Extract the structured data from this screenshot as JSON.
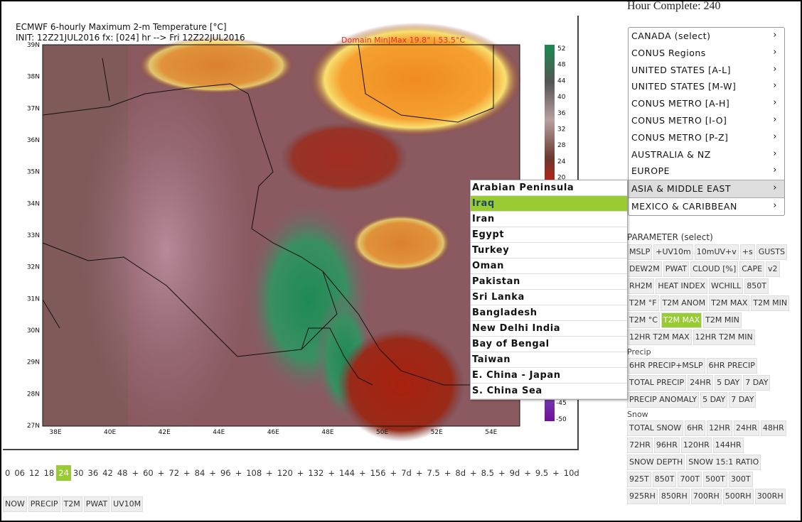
{
  "header": {
    "hour_complete": "Hour Complete: 240"
  },
  "map": {
    "title_lines": [
      "ECMWF 6-hourly Maximum 2-m Temperature [°C]",
      "INIT: 12Z21JUL2016 fx: [024] hr --> Fri 12Z22JUL2016"
    ],
    "domain_label": "Domain Min|Max 19.8° | 53.5°C",
    "lat_labels": [
      "39N",
      "38N",
      "37N",
      "36N",
      "35N",
      "34N",
      "33N",
      "32N",
      "31N",
      "30N",
      "29N",
      "28N",
      "27N"
    ],
    "lon_labels": [
      "38E",
      "40E",
      "42E",
      "44E",
      "46E",
      "48E",
      "50E",
      "52E",
      "54E"
    ],
    "colorbar_labels": [
      52,
      48,
      44,
      40,
      36,
      32,
      28,
      24,
      20
    ],
    "colorbar_labels_bottom": [
      -45,
      -50
    ]
  },
  "forecast_hours": {
    "items": [
      "0",
      "06",
      "12",
      "18",
      "24",
      "30",
      "36",
      "42",
      "48",
      "+",
      "60",
      "+",
      "72",
      "+",
      "84",
      "+",
      "96",
      "+",
      "108",
      "+",
      "120",
      "+",
      "132",
      "+",
      "144",
      "+",
      "156",
      "+",
      "7d",
      "+",
      "7.5",
      "+",
      "8d",
      "+",
      "8.5",
      "+",
      "9d",
      "+",
      "9.5",
      "+",
      "10d"
    ],
    "active": 4
  },
  "bottom_buttons": [
    "NOW",
    "PRECIP",
    "T2M",
    "PWAT",
    "UV10M"
  ],
  "region_menu": {
    "items": [
      "CANADA (select)",
      "CONUS Regions",
      "UNITED STATES [A-L]",
      "UNITED STATES [M-W]",
      "CONUS METRO [A-H]",
      "CONUS METRO [I-O]",
      "CONUS METRO [P-Z]",
      "AUSTRALIA & NZ",
      "EUROPE",
      "ASIA & MIDDLE EAST",
      "MEXICO & CARIBBEAN"
    ],
    "active": 9
  },
  "submenu": {
    "items": [
      "Arabian Peninsula",
      "Iraq",
      "Iran",
      "Egypt",
      "Turkey",
      "Oman",
      "Pakistan",
      "Sri Lanka",
      "Bangladesh",
      "New Delhi India",
      "Bay of Bengal",
      "Taiwan",
      "E. China - Japan",
      "S. China Sea"
    ],
    "active": 1
  },
  "parameters": {
    "title": "PARAMETER (select)",
    "sections": [
      {
        "rows": [
          [
            "MSLP",
            "+UV10m",
            "10mUV+v",
            "+s",
            "GUSTS"
          ],
          [
            "DEW2M",
            "PWAT",
            "CLOUD [%]",
            "CAPE",
            "v2"
          ],
          [
            "RH2M",
            "HEAT INDEX",
            "WCHILL",
            "850T"
          ],
          [
            "T2M °F",
            "T2M ANOM",
            "T2M MAX",
            "T2M MIN"
          ],
          [
            "T2M °C",
            "T2M MAX",
            "T2M MIN"
          ],
          [
            "12HR T2M MAX",
            "12HR T2M MIN"
          ]
        ]
      },
      {
        "label": "Precip",
        "rows": [
          [
            "6HR PRECIP+MSLP",
            "6HR PRECIP"
          ],
          [
            "TOTAL PRECIP",
            "24HR",
            "5 DAY",
            "7 DAY"
          ],
          [
            "PRECIP ANOMALY",
            "5 DAY",
            "7 DAY"
          ]
        ]
      },
      {
        "label": "Snow",
        "rows": [
          [
            "TOTAL SNOW",
            "6HR",
            "12HR",
            "24HR",
            "48HR"
          ],
          [
            "72HR",
            "96HR",
            "120HR",
            "144HR"
          ],
          [
            "SNOW DEPTH",
            "SNOW 15:1 RATIO"
          ],
          [
            "925T",
            "850T",
            "700T",
            "500T",
            "300T"
          ],
          [
            "925RH",
            "850RH",
            "700RH",
            "500RH",
            "300RH"
          ]
        ]
      }
    ],
    "active": [
      0,
      4,
      1
    ]
  }
}
